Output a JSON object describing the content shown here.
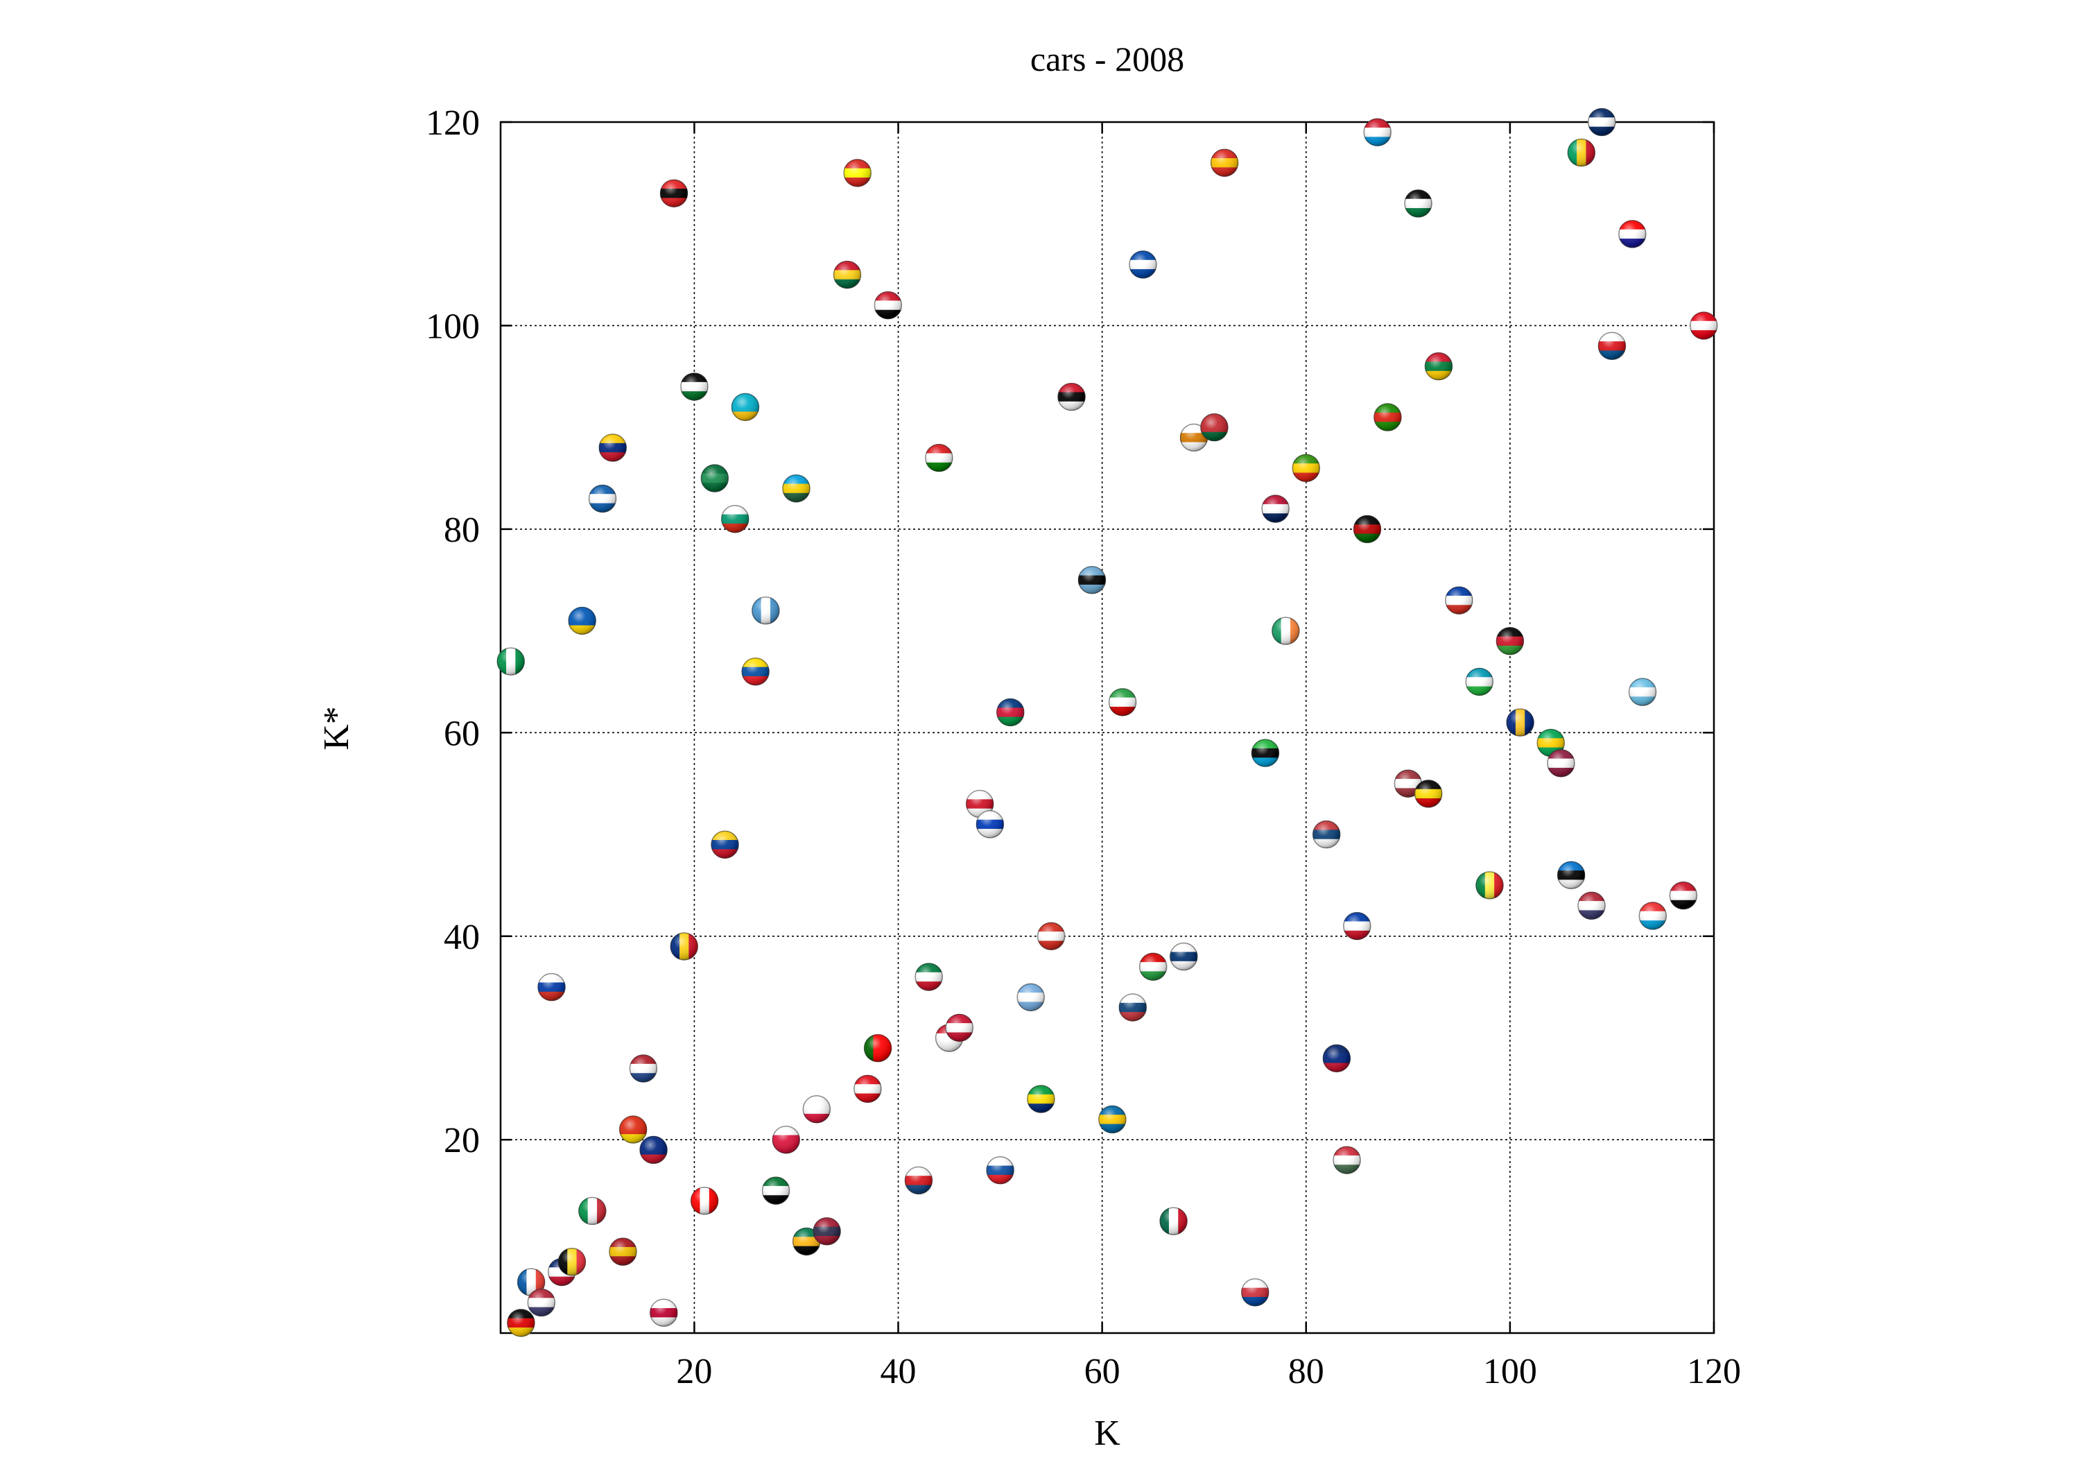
{
  "chart_data": {
    "type": "scatter",
    "title": "cars - 2008",
    "xlabel": "K",
    "ylabel": "K*",
    "xlim": [
      1,
      120
    ],
    "ylim": [
      1,
      120
    ],
    "xticks": [
      "20",
      "40",
      "60",
      "80",
      "100",
      "120"
    ],
    "yticks": [
      "20",
      "40",
      "60",
      "80",
      "100",
      "120"
    ],
    "grid": true,
    "marker": "flag-sphere",
    "points": [
      {
        "x": 3,
        "y": 2,
        "flag": [
          "#000000",
          "#dd0000",
          "#ffce00"
        ]
      },
      {
        "x": 4,
        "y": 6,
        "flag": [
          "#0055a4",
          "#ffffff",
          "#ef4135"
        ],
        "vertical": true
      },
      {
        "x": 5,
        "y": 4,
        "flag": [
          "#b22234",
          "#ffffff",
          "#3c3b6e"
        ]
      },
      {
        "x": 7,
        "y": 7,
        "flag": [
          "#012169",
          "#ffffff",
          "#c8102e"
        ]
      },
      {
        "x": 8,
        "y": 8,
        "flag": [
          "#000000",
          "#fdda24",
          "#ef3340"
        ],
        "vertical": true
      },
      {
        "x": 2,
        "y": 67,
        "flag": [
          "#009246",
          "#ffffff",
          "#009246"
        ],
        "vertical": true
      },
      {
        "x": 6,
        "y": 35,
        "flag": [
          "#ffffff",
          "#0039a6",
          "#d52b1e"
        ]
      },
      {
        "x": 9,
        "y": 71,
        "flag": [
          "#0057b7",
          "#0057b7",
          "#ffd700"
        ]
      },
      {
        "x": 10,
        "y": 13,
        "flag": [
          "#009246",
          "#ffffff",
          "#ce2b37"
        ],
        "vertical": true
      },
      {
        "x": 11,
        "y": 83,
        "flag": [
          "#0d5eaf",
          "#ffffff",
          "#0d5eaf"
        ]
      },
      {
        "x": 12,
        "y": 88,
        "flag": [
          "#ffcc00",
          "#00247d",
          "#cf142b"
        ]
      },
      {
        "x": 13,
        "y": 9,
        "flag": [
          "#aa151b",
          "#f1bf00",
          "#aa151b"
        ]
      },
      {
        "x": 14,
        "y": 21,
        "flag": [
          "#de2910",
          "#de2910",
          "#ffde00"
        ]
      },
      {
        "x": 15,
        "y": 27,
        "flag": [
          "#ae1c28",
          "#ffffff",
          "#21468b"
        ]
      },
      {
        "x": 16,
        "y": 19,
        "flag": [
          "#00247d",
          "#00247d",
          "#cc142b"
        ]
      },
      {
        "x": 17,
        "y": 3,
        "flag": [
          "#ffffff",
          "#bc002d",
          "#ffffff"
        ]
      },
      {
        "x": 18,
        "y": 113,
        "flag": [
          "#e41e20",
          "#000000",
          "#e41e20"
        ]
      },
      {
        "x": 19,
        "y": 39,
        "flag": [
          "#002b7f",
          "#fcd116",
          "#ce1126"
        ],
        "vertical": true
      },
      {
        "x": 20,
        "y": 94,
        "flag": [
          "#000000",
          "#ffffff",
          "#007229"
        ]
      },
      {
        "x": 21,
        "y": 14,
        "flag": [
          "#ff0000",
          "#ffffff",
          "#ff0000"
        ],
        "vertical": true
      },
      {
        "x": 22,
        "y": 85,
        "flag": [
          "#006c35",
          "#1a8d4f",
          "#006c35"
        ]
      },
      {
        "x": 23,
        "y": 49,
        "flag": [
          "#fcd116",
          "#003893",
          "#ce1126"
        ]
      },
      {
        "x": 24,
        "y": 81,
        "flag": [
          "#ffffff",
          "#00966e",
          "#d62612"
        ]
      },
      {
        "x": 25,
        "y": 92,
        "flag": [
          "#00afca",
          "#00afca",
          "#fec50c"
        ]
      },
      {
        "x": 26,
        "y": 66,
        "flag": [
          "#ffdd00",
          "#034ea2",
          "#ed1c24"
        ]
      },
      {
        "x": 27,
        "y": 72,
        "flag": [
          "#4997d0",
          "#ffffff",
          "#4997d0"
        ],
        "vertical": true
      },
      {
        "x": 28,
        "y": 15,
        "flag": [
          "#00732f",
          "#ffffff",
          "#000000"
        ]
      },
      {
        "x": 29,
        "y": 20,
        "flag": [
          "#ffffff",
          "#dc143c",
          "#dc143c"
        ]
      },
      {
        "x": 30,
        "y": 84,
        "flag": [
          "#00a1de",
          "#fad201",
          "#20603d"
        ]
      },
      {
        "x": 31,
        "y": 10,
        "flag": [
          "#007a4d",
          "#ffb612",
          "#000000"
        ]
      },
      {
        "x": 32,
        "y": 23,
        "flag": [
          "#ffffff",
          "#ffffff",
          "#dc143c"
        ]
      },
      {
        "x": 33,
        "y": 11,
        "flag": [
          "#a51931",
          "#2d2a4a",
          "#a51931"
        ]
      },
      {
        "x": 35,
        "y": 105,
        "flag": [
          "#ce1126",
          "#fcd116",
          "#006b3f"
        ]
      },
      {
        "x": 36,
        "y": 115,
        "flag": [
          "#da251d",
          "#ffff00",
          "#da251d"
        ]
      },
      {
        "x": 37,
        "y": 25,
        "flag": [
          "#e30a17",
          "#ffffff",
          "#e30a17"
        ]
      },
      {
        "x": 38,
        "y": 29,
        "flag": [
          "#006600",
          "#ff0000",
          "#ff0000"
        ],
        "vertical": true
      },
      {
        "x": 39,
        "y": 102,
        "flag": [
          "#ce1126",
          "#ffffff",
          "#000000"
        ]
      },
      {
        "x": 42,
        "y": 16,
        "flag": [
          "#ffffff",
          "#d7141a",
          "#11457e"
        ]
      },
      {
        "x": 43,
        "y": 36,
        "flag": [
          "#007a3d",
          "#ffffff",
          "#ce1126"
        ]
      },
      {
        "x": 44,
        "y": 87,
        "flag": [
          "#db161b",
          "#ffffff",
          "#008000"
        ]
      },
      {
        "x": 45,
        "y": 30,
        "flag": [
          "#ce1126",
          "#ffffff",
          "#ffffff"
        ]
      },
      {
        "x": 46,
        "y": 31,
        "flag": [
          "#c8102e",
          "#ffffff",
          "#c8102e"
        ]
      },
      {
        "x": 48,
        "y": 53,
        "flag": [
          "#ffffff",
          "#ce1124",
          "#ffffff"
        ]
      },
      {
        "x": 49,
        "y": 51,
        "flag": [
          "#ffffff",
          "#0038b8",
          "#ffffff"
        ]
      },
      {
        "x": 50,
        "y": 17,
        "flag": [
          "#ffffff",
          "#0b4ea2",
          "#ee1c25"
        ]
      },
      {
        "x": 51,
        "y": 62,
        "flag": [
          "#003580",
          "#d21034",
          "#009543"
        ]
      },
      {
        "x": 53,
        "y": 34,
        "flag": [
          "#74acdf",
          "#ffffff",
          "#74acdf"
        ]
      },
      {
        "x": 54,
        "y": 24,
        "flag": [
          "#009c3b",
          "#ffdf00",
          "#002776"
        ]
      },
      {
        "x": 55,
        "y": 40,
        "flag": [
          "#d52b1e",
          "#ffffff",
          "#d52b1e"
        ]
      },
      {
        "x": 57,
        "y": 93,
        "flag": [
          "#ce1126",
          "#000000",
          "#ffffff"
        ]
      },
      {
        "x": 59,
        "y": 75,
        "flag": [
          "#6da9d2",
          "#000000",
          "#6da9d2"
        ]
      },
      {
        "x": 61,
        "y": 22,
        "flag": [
          "#006aa7",
          "#fecc00",
          "#006aa7"
        ]
      },
      {
        "x": 62,
        "y": 63,
        "flag": [
          "#239f40",
          "#ffffff",
          "#da0000"
        ]
      },
      {
        "x": 63,
        "y": 33,
        "flag": [
          "#ffffff",
          "#0c4076",
          "#c6363c"
        ]
      },
      {
        "x": 64,
        "y": 106,
        "flag": [
          "#0047ab",
          "#ffffff",
          "#0047ab"
        ]
      },
      {
        "x": 65,
        "y": 37,
        "flag": [
          "#da0000",
          "#ffffff",
          "#239f40"
        ]
      },
      {
        "x": 67,
        "y": 12,
        "flag": [
          "#006847",
          "#ffffff",
          "#ce1126"
        ],
        "vertical": true
      },
      {
        "x": 68,
        "y": 38,
        "flag": [
          "#ffffff",
          "#002f6c",
          "#ffffff"
        ]
      },
      {
        "x": 69,
        "y": 89,
        "flag": [
          "#ffffff",
          "#d57800",
          "#ffffff"
        ]
      },
      {
        "x": 71,
        "y": 90,
        "flag": [
          "#c1272d",
          "#c1272d",
          "#006233"
        ]
      },
      {
        "x": 72,
        "y": 116,
        "flag": [
          "#da251d",
          "#ffc400",
          "#da251d"
        ]
      },
      {
        "x": 75,
        "y": 5,
        "flag": [
          "#ffffff",
          "#cd2e3a",
          "#0047a0"
        ]
      },
      {
        "x": 76,
        "y": 58,
        "flag": [
          "#1eb53a",
          "#000000",
          "#00a3dd"
        ]
      },
      {
        "x": 77,
        "y": 82,
        "flag": [
          "#ba0c2f",
          "#ffffff",
          "#00205b"
        ]
      },
      {
        "x": 78,
        "y": 70,
        "flag": [
          "#169b62",
          "#ffffff",
          "#ff883e"
        ],
        "vertical": true
      },
      {
        "x": 80,
        "y": 86,
        "flag": [
          "#319208",
          "#ffd200",
          "#de2010"
        ]
      },
      {
        "x": 82,
        "y": 50,
        "flag": [
          "#c6363c",
          "#0c4076",
          "#ffffff"
        ]
      },
      {
        "x": 83,
        "y": 28,
        "flag": [
          "#012169",
          "#00247d",
          "#c8102e"
        ]
      },
      {
        "x": 84,
        "y": 18,
        "flag": [
          "#ce2939",
          "#ffffff",
          "#477050"
        ]
      },
      {
        "x": 85,
        "y": 41,
        "flag": [
          "#0038a8",
          "#ffffff",
          "#ce1126"
        ]
      },
      {
        "x": 86,
        "y": 80,
        "flag": [
          "#000000",
          "#bb0000",
          "#006600"
        ]
      },
      {
        "x": 87,
        "y": 119,
        "flag": [
          "#ce1126",
          "#ffffff",
          "#0093dd"
        ]
      },
      {
        "x": 88,
        "y": 91,
        "flag": [
          "#198a00",
          "#de2010",
          "#198a00"
        ]
      },
      {
        "x": 90,
        "y": 55,
        "flag": [
          "#9e3039",
          "#ffffff",
          "#9e3039"
        ]
      },
      {
        "x": 91,
        "y": 112,
        "flag": [
          "#000000",
          "#ffffff",
          "#007a3d"
        ]
      },
      {
        "x": 92,
        "y": 54,
        "flag": [
          "#000000",
          "#fcdc04",
          "#d90000"
        ]
      },
      {
        "x": 93,
        "y": 96,
        "flag": [
          "#ce1126",
          "#007e3a",
          "#ffcd00"
        ]
      },
      {
        "x": 95,
        "y": 73,
        "flag": [
          "#0039a6",
          "#ffffff",
          "#d52b1e"
        ]
      },
      {
        "x": 97,
        "y": 65,
        "flag": [
          "#0099b5",
          "#ffffff",
          "#1eb53a"
        ]
      },
      {
        "x": 98,
        "y": 45,
        "flag": [
          "#00853f",
          "#fdef42",
          "#e31b23"
        ],
        "vertical": true
      },
      {
        "x": 100,
        "y": 69,
        "flag": [
          "#000000",
          "#ce1126",
          "#339e35"
        ]
      },
      {
        "x": 101,
        "y": 61,
        "flag": [
          "#00267f",
          "#ffc726",
          "#00267f"
        ],
        "vertical": true
      },
      {
        "x": 104,
        "y": 59,
        "flag": [
          "#00a651",
          "#ffd100",
          "#00a651"
        ]
      },
      {
        "x": 105,
        "y": 57,
        "flag": [
          "#8d1b3d",
          "#ffffff",
          "#8d1b3d"
        ]
      },
      {
        "x": 106,
        "y": 46,
        "flag": [
          "#0072ce",
          "#000000",
          "#ffffff"
        ]
      },
      {
        "x": 107,
        "y": 117,
        "flag": [
          "#009e60",
          "#fcd116",
          "#ce1126"
        ],
        "vertical": true
      },
      {
        "x": 108,
        "y": 43,
        "flag": [
          "#b22234",
          "#ffffff",
          "#3c3b6e"
        ]
      },
      {
        "x": 109,
        "y": 120,
        "flag": [
          "#002664",
          "#ffffff",
          "#002664"
        ]
      },
      {
        "x": 110,
        "y": 98,
        "flag": [
          "#ffffff",
          "#da121a",
          "#005293"
        ]
      },
      {
        "x": 112,
        "y": 109,
        "flag": [
          "#ff0000",
          "#ffffff",
          "#171796"
        ]
      },
      {
        "x": 113,
        "y": 64,
        "flag": [
          "#68bfe5",
          "#ffffff",
          "#68bfe5"
        ]
      },
      {
        "x": 114,
        "y": 42,
        "flag": [
          "#ef2b2d",
          "#ffffff",
          "#00a3dd"
        ]
      },
      {
        "x": 117,
        "y": 44,
        "flag": [
          "#ce1126",
          "#ffffff",
          "#000000"
        ]
      },
      {
        "x": 119,
        "y": 100,
        "flag": [
          "#e70013",
          "#ffffff",
          "#e70013"
        ]
      }
    ]
  }
}
